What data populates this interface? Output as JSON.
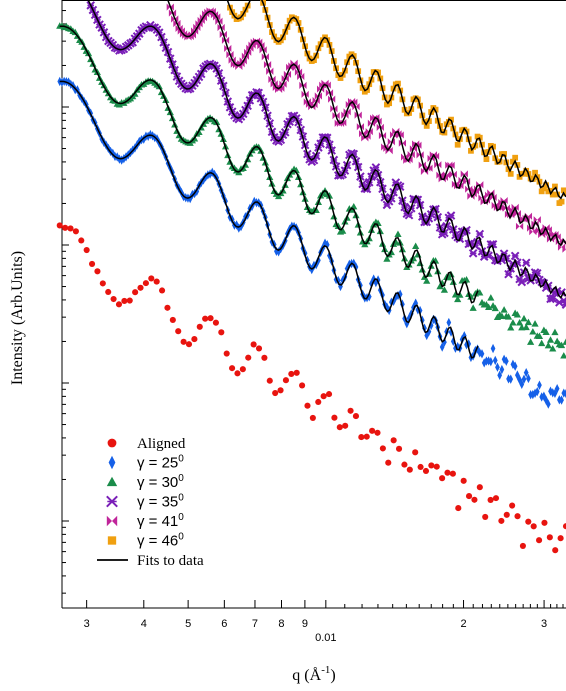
{
  "chart_data": {
    "type": "scatter",
    "title": "",
    "xlabel": "q (Å",
    "xlabel_sup": "-1",
    "xlabel_close": ")",
    "ylabel": "Intensity (Arb.Units)",
    "x_scale": "log",
    "y_scale": "log",
    "xlim": [
      0.00265,
      0.0335
    ],
    "x_ticks": [
      {
        "value": 0.003,
        "label": "3"
      },
      {
        "value": 0.004,
        "label": "4"
      },
      {
        "value": 0.005,
        "label": "5"
      },
      {
        "value": 0.006,
        "label": "6"
      },
      {
        "value": 0.007,
        "label": "7"
      },
      {
        "value": 0.008,
        "label": "8"
      },
      {
        "value": 0.009,
        "label": "9"
      },
      {
        "value": 0.01,
        "label": "0.01"
      },
      {
        "value": 0.02,
        "label": "2"
      },
      {
        "value": 0.03,
        "label": "3"
      }
    ],
    "y_tick_labels": "none",
    "grid": false,
    "legend_position": "bottom-left",
    "series": [
      {
        "name": "Aligned",
        "marker": "circle",
        "color": "#e8140f",
        "hasFit": false,
        "offset": 0.0,
        "end": 0.0335,
        "noise": 0.07
      },
      {
        "name": "γ = 25",
        "name_sup": "0",
        "marker": "diamond",
        "color": "#1560e8",
        "hasFit": true,
        "offset": 1.05,
        "end": 0.0335,
        "noise": 0.035,
        "fitEnd": 0.0215
      },
      {
        "name": "γ = 30",
        "name_sup": "0",
        "marker": "triangle",
        "color": "#1a8c4a",
        "hasFit": true,
        "offset": 1.45,
        "end": 0.0335,
        "noise": 0.03,
        "fitEnd": 0.0215
      },
      {
        "name": "γ = 35",
        "name_sup": "0",
        "marker": "asterisk",
        "color": "#7a1fb8",
        "hasFit": true,
        "offset": 1.84,
        "end": 0.0335,
        "noise": 0.025,
        "fitEnd": 0.0335
      },
      {
        "name": "γ = 41",
        "name_sup": "0",
        "marker": "bowtie",
        "color": "#c0259a",
        "hasFit": true,
        "offset": 2.22,
        "end": 0.0335,
        "noise": 0.02,
        "fitEnd": 0.0335
      },
      {
        "name": "γ = 46",
        "name_sup": "0",
        "marker": "square",
        "color": "#f0a010",
        "hasFit": true,
        "offset": 2.56,
        "end": 0.0335,
        "noise": 0.015,
        "fitEnd": 0.0335
      }
    ],
    "fit_label": "Fits to data",
    "fit_color": "#000000"
  }
}
